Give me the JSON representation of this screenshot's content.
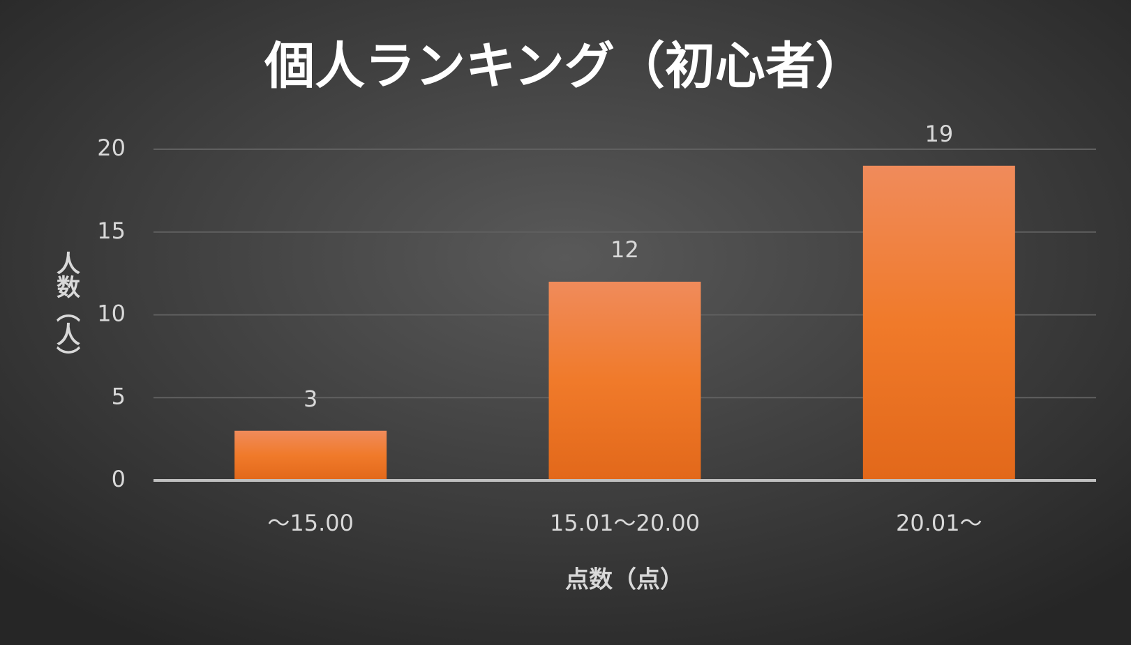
{
  "chart_data": {
    "type": "bar",
    "title": "個人ランキング（初心者）",
    "x_label": "点数（点）",
    "y_label": "人数（人）",
    "categories": [
      "～15.00",
      "15.01～20.00",
      "20.01～"
    ],
    "values": [
      3,
      12,
      19
    ],
    "color": "#ee7a35",
    "ylim": [
      0,
      20
    ],
    "yticks": [
      0,
      5,
      10,
      15,
      20
    ],
    "grid": true,
    "data_labels": true
  }
}
